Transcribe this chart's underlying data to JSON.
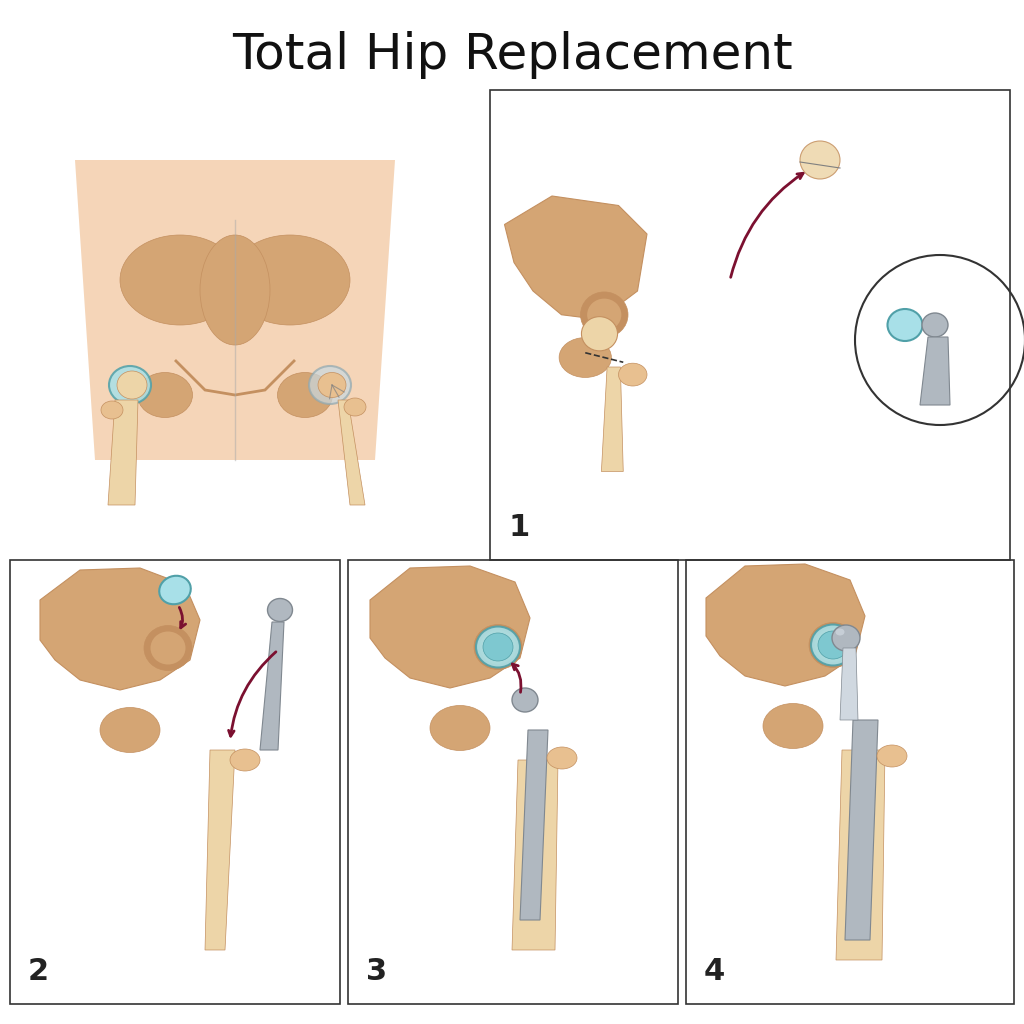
{
  "title": "Total Hip Replacement",
  "title_fontsize": 36,
  "title_fontweight": "normal",
  "title_font": "sans-serif",
  "bg_color": "#ffffff",
  "skin_color": "#F0C8A0",
  "skin_light": "#F5D5B8",
  "bone_color": "#D4A574",
  "bone_dark": "#C49060",
  "bone_light": "#E8C090",
  "bone_cream": "#EDD5A8",
  "implant_color": "#B0B8C0",
  "implant_light": "#D0D8E0",
  "implant_dark": "#808890",
  "cup_color": "#7EC8D0",
  "cup_light": "#A8E0E8",
  "cup_dark": "#50A0A8",
  "arrow_color": "#7B1030",
  "box_color": "#333333",
  "number_fontsize": 22,
  "label_1": "1",
  "label_2": "2",
  "label_3": "3",
  "label_4": "4"
}
